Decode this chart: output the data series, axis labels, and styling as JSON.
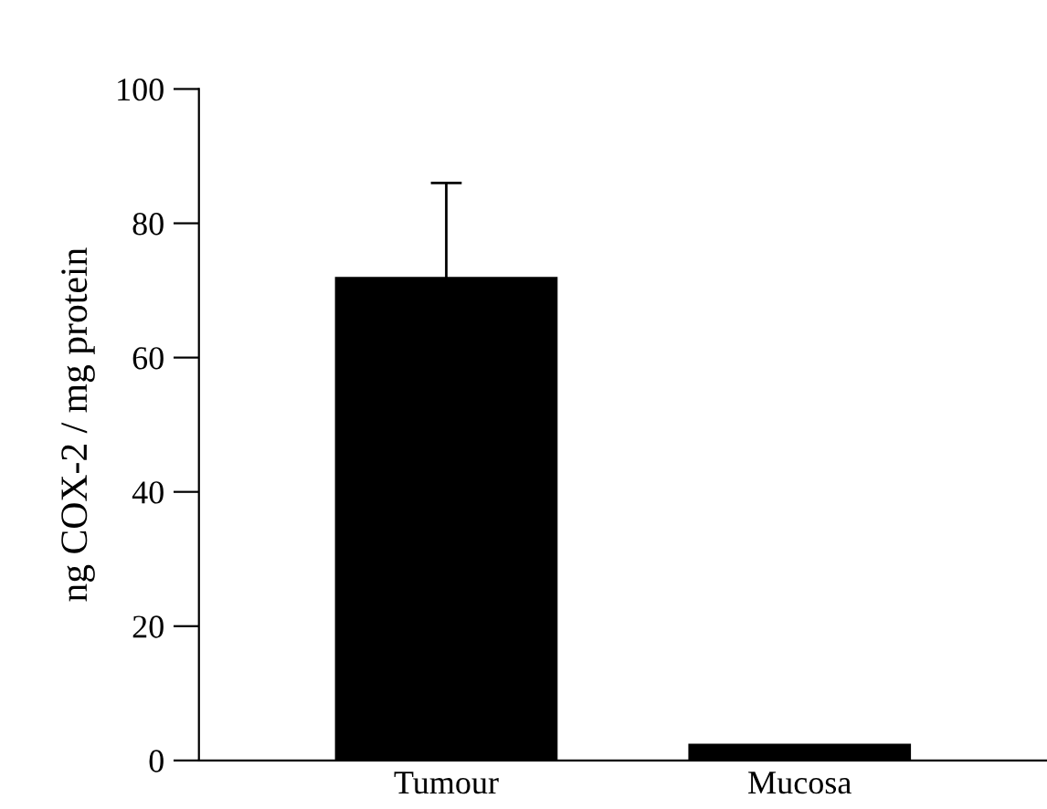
{
  "chart_data": {
    "type": "bar",
    "ylabel": "ng COX-2 / mg protein",
    "categories": [
      "Tumour",
      "Mucosa"
    ],
    "values": [
      72,
      2.5
    ],
    "errors": [
      [
        72,
        86
      ],
      null
    ],
    "color": "#000000",
    "ylim": [
      0,
      100
    ],
    "yticks": [
      0,
      20,
      40,
      60,
      80,
      100
    ],
    "grid": false
  }
}
